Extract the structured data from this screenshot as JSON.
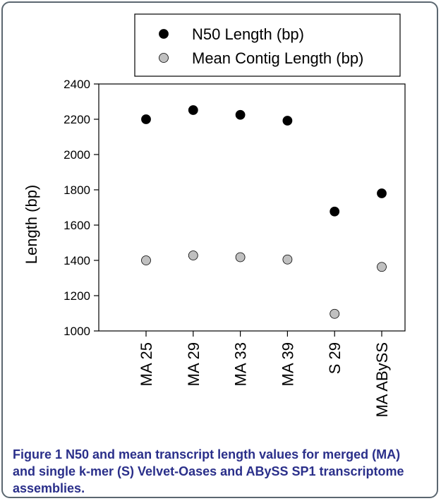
{
  "chart_data": {
    "type": "scatter",
    "categories": [
      "MA 25",
      "MA 29",
      "MA 33",
      "MA 39",
      "S 29",
      "MA ABySS"
    ],
    "series": [
      {
        "name": "N50 Length (bp)",
        "color": "#000000",
        "values": [
          2200,
          2252,
          2225,
          2192,
          1677,
          1780
        ]
      },
      {
        "name": "Mean Contig Length (bp)",
        "color": "#c0c0c0",
        "values": [
          1400,
          1428,
          1418,
          1405,
          1097,
          1363
        ]
      }
    ],
    "ylabel": "Length (bp)",
    "ylim": [
      1000,
      2400
    ],
    "yticks": [
      "1000",
      "1200",
      "1400",
      "1600",
      "1800",
      "2000",
      "2200",
      "2400"
    ],
    "grid": false,
    "legend_position": "top"
  },
  "caption": {
    "label": "Figure 1",
    "text": " N50 and mean transcript length values for merged (MA) and single k-mer (S) Velvet-Oases and ABySS SP1 transcriptome assemblies."
  }
}
